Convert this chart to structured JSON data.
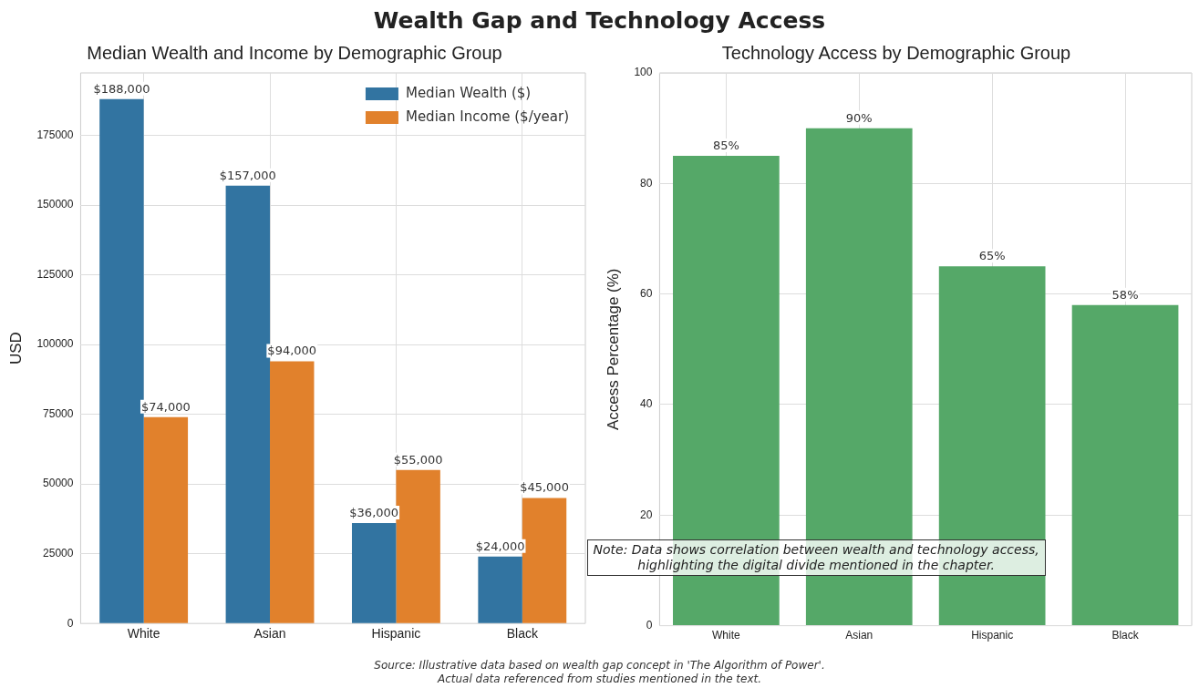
{
  "chart_data": [
    {
      "type": "other",
      "title": "Wealth Gap and Technology Access",
      "annotations": [
        "Source: Illustrative data based on wealth gap concept in 'The Algorithm of Power'.",
        "Actual data referenced from studies mentioned in the text."
      ]
    },
    {
      "type": "bar",
      "title": "Median Wealth and Income by Demographic Group",
      "ylabel": "USD",
      "categories": [
        "White",
        "Asian",
        "Hispanic",
        "Black"
      ],
      "series": [
        {
          "name": "Median Wealth ($)",
          "color": "#3274a1",
          "values": [
            188000,
            157000,
            36000,
            24000
          ],
          "value_labels": [
            "$188,000",
            "$157,000",
            "$36,000",
            "$24,000"
          ]
        },
        {
          "name": "Median Income ($/year)",
          "color": "#e1812c",
          "values": [
            74000,
            94000,
            55000,
            45000
          ],
          "value_labels": [
            "$74,000",
            "$94,000",
            "$55,000",
            "$45,000"
          ]
        }
      ],
      "ylim": [
        0,
        197400
      ],
      "yticks": [
        0,
        25000,
        50000,
        75000,
        100000,
        125000,
        150000,
        175000
      ],
      "grid": true,
      "legend": "top right"
    },
    {
      "type": "bar",
      "title": "Technology Access by Demographic Group",
      "ylabel": "Access Percentage (%)",
      "categories": [
        "White",
        "Asian",
        "Hispanic",
        "Black"
      ],
      "values": [
        85,
        90,
        65,
        58
      ],
      "value_labels": [
        "85%",
        "90%",
        "65%",
        "58%"
      ],
      "color": "#55a868",
      "ylim": [
        0,
        100
      ],
      "yticks": [
        0,
        20,
        40,
        60,
        80,
        100
      ],
      "grid": true,
      "annotations": [
        "Note: Data shows correlation between wealth and technology access,\nhighlighting the digital divide mentioned in the chapter."
      ]
    }
  ]
}
